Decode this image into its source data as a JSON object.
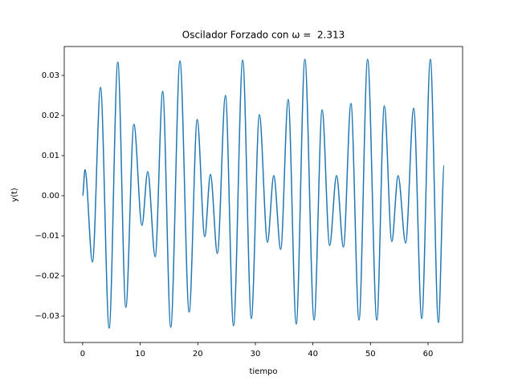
{
  "chart_data": {
    "type": "line",
    "title": "Oscilador Forzado con ω =  2.313",
    "xlabel": "tiempo",
    "ylabel": "y(t)",
    "x": [
      0,
      0.4,
      1.7,
      3.1,
      4.6,
      6.1,
      7.5,
      8.9,
      10.3,
      11.3,
      12.6,
      13.9,
      15.3,
      16.9,
      18.5,
      19.9,
      21.2,
      22.2,
      23.4,
      24.8,
      26.2,
      27.8,
      29.3,
      30.7,
      32.1,
      33.2,
      34.4,
      35.7,
      37.1,
      38.6,
      40.2,
      41.6,
      42.9,
      44.1,
      45.3,
      46.6,
      48.0,
      49.5,
      51.1,
      52.4,
      53.7,
      54.8,
      56.1,
      57.5,
      58.9,
      60.4,
      61.8,
      62.8
    ],
    "series": [
      {
        "name": "y(t)",
        "color": "#1f77b4",
        "values": [
          0,
          0.0065,
          -0.0165,
          0.027,
          -0.033,
          0.0333,
          -0.0278,
          0.0178,
          -0.0074,
          0.006,
          -0.0152,
          0.026,
          -0.0328,
          0.0336,
          -0.029,
          0.019,
          -0.0102,
          0.0053,
          -0.0144,
          0.025,
          -0.0324,
          0.0338,
          -0.0306,
          0.0202,
          -0.0116,
          0.005,
          -0.0134,
          0.024,
          -0.032,
          0.034,
          -0.031,
          0.0214,
          -0.0124,
          0.005,
          -0.0128,
          0.023,
          -0.031,
          0.034,
          -0.031,
          0.0224,
          -0.0114,
          0.005,
          -0.0118,
          0.0218,
          -0.0306,
          0.034,
          -0.0316,
          0.0075
        ]
      }
    ],
    "xlim": [
      -3.2,
      66.0
    ],
    "ylim": [
      -0.0366,
      0.0372
    ],
    "xticks": [
      0,
      10,
      20,
      30,
      40,
      50,
      60
    ],
    "yticks": [
      {
        "value": -0.03,
        "label": "−0.03"
      },
      {
        "value": -0.02,
        "label": "−0.02"
      },
      {
        "value": -0.01,
        "label": "−0.01"
      },
      {
        "value": 0,
        "label": "0.00"
      },
      {
        "value": 0.01,
        "label": "0.01"
      },
      {
        "value": 0.02,
        "label": "0.02"
      },
      {
        "value": 0.03,
        "label": "0.03"
      }
    ],
    "grid": false
  }
}
